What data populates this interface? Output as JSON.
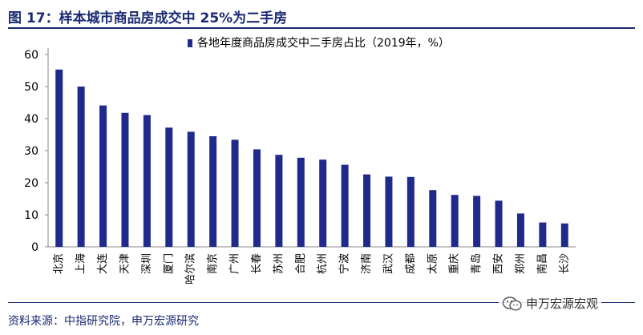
{
  "header": {
    "title": "图 17：样本城市商品房成交中 25%为二手房"
  },
  "chart_data": {
    "type": "bar",
    "categories": [
      "北京",
      "上海",
      "大连",
      "天津",
      "深圳",
      "厦门",
      "哈尔滨",
      "南京",
      "广州",
      "长春",
      "苏州",
      "合肥",
      "杭州",
      "宁波",
      "济南",
      "武汉",
      "成都",
      "太原",
      "重庆",
      "青岛",
      "西安",
      "郑州",
      "南昌",
      "长沙"
    ],
    "series": [
      {
        "name": "各地年度商品房成交中二手房占比（2019年，%）",
        "values": [
          55.3,
          50.0,
          44.1,
          41.8,
          41.1,
          37.2,
          35.9,
          34.5,
          33.4,
          30.4,
          28.7,
          27.8,
          27.2,
          25.6,
          22.6,
          21.9,
          21.8,
          17.7,
          16.2,
          15.9,
          14.4,
          10.4,
          7.6,
          7.3
        ]
      }
    ],
    "ylim": [
      0,
      60
    ],
    "yticks": [
      0,
      10,
      20,
      30,
      40,
      50,
      60
    ],
    "legend_position": "top",
    "grid": false,
    "bar_color": "#1f2a8c"
  },
  "footer": {
    "source": "资料来源：中指研究院，申万宏源研究",
    "watermark": "申万宏源宏观"
  }
}
